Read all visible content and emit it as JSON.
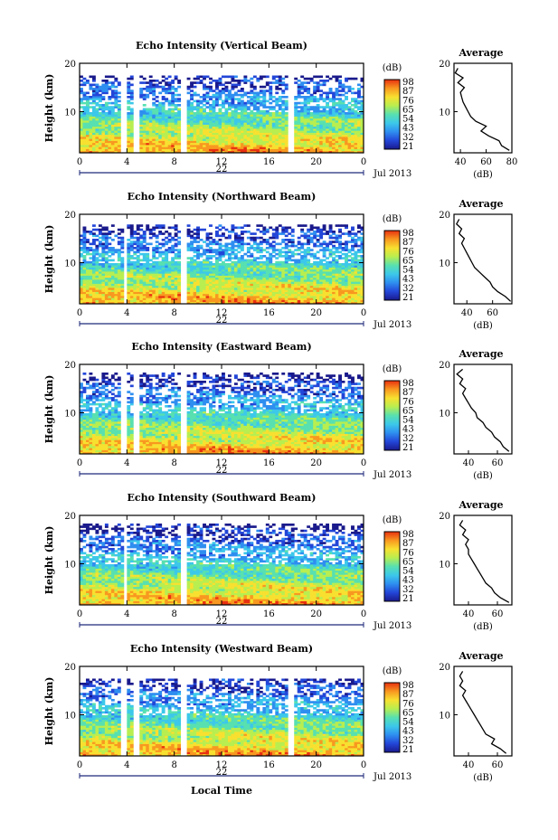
{
  "figure": {
    "xlabel": "Local Time",
    "x_ticks": [
      "0",
      "4",
      "8",
      "12",
      "16",
      "20",
      "0"
    ],
    "date_label": "22",
    "month_label": "Jul 2013",
    "colorbar_unit": "(dB)",
    "colorbar_ticks": [
      "98",
      "87",
      "76",
      "65",
      "54",
      "43",
      "32",
      "21"
    ],
    "avg_title": "Average",
    "avg_xlabel": "(dB)"
  },
  "chart_data": [
    {
      "type": "heatmap",
      "title": "Echo Intensity (Vertical Beam)",
      "ylabel": "Height (km)",
      "xlim": [
        0,
        24
      ],
      "ylim": [
        1.5,
        20
      ],
      "yticks": [
        10,
        20
      ],
      "color_range": [
        21,
        98
      ],
      "colormap": [
        "#1a1a8c",
        "#2346d8",
        "#2f8ef0",
        "#3cc8ea",
        "#58e0b0",
        "#b8ee50",
        "#f8e030",
        "#f89820",
        "#e83010"
      ],
      "gaps_hours": [
        [
          3.5,
          4.0
        ],
        [
          4.6,
          5.1
        ],
        [
          8.6,
          9.1
        ],
        [
          17.7,
          18.0
        ]
      ],
      "upper_extent_km": 17.5,
      "avg_xlim": [
        35,
        80
      ],
      "avg_xticks": [
        40,
        60,
        80
      ],
      "avg_xticklabels": [
        "40",
        "60",
        "80"
      ],
      "avg_profile": {
        "height_km": [
          2,
          3,
          4,
          5,
          6,
          7,
          8,
          9,
          10,
          11,
          12,
          13,
          14,
          15,
          16,
          17,
          18,
          19
        ],
        "db": [
          78,
          72,
          70,
          62,
          56,
          60,
          52,
          48,
          46,
          44,
          42,
          41,
          40,
          43,
          38,
          42,
          36,
          38
        ]
      }
    },
    {
      "type": "heatmap",
      "title": "Echo Intensity (Northward Beam)",
      "ylabel": "Height (km)",
      "xlim": [
        0,
        24
      ],
      "ylim": [
        1.5,
        20
      ],
      "yticks": [
        10,
        20
      ],
      "color_range": [
        21,
        98
      ],
      "colormap": [
        "#1a1a8c",
        "#2346d8",
        "#2f8ef0",
        "#3cc8ea",
        "#58e0b0",
        "#b8ee50",
        "#f8e030",
        "#f89820",
        "#e83010"
      ],
      "gaps_hours": [
        [
          3.6,
          3.9
        ],
        [
          8.6,
          9.0
        ]
      ],
      "upper_extent_km": 18.0,
      "avg_xlim": [
        30,
        75
      ],
      "avg_xticks": [
        40,
        60
      ],
      "avg_xticklabels": [
        "40",
        "60"
      ],
      "avg_profile": {
        "height_km": [
          2,
          3,
          4,
          5,
          6,
          7,
          8,
          9,
          10,
          11,
          12,
          13,
          14,
          15,
          16,
          17,
          18,
          19
        ],
        "db": [
          74,
          70,
          64,
          60,
          58,
          54,
          50,
          46,
          44,
          42,
          40,
          38,
          36,
          38,
          34,
          36,
          32,
          34
        ]
      }
    },
    {
      "type": "heatmap",
      "title": "Echo Intensity (Eastward Beam)",
      "ylabel": "Height (km)",
      "xlim": [
        0,
        24
      ],
      "ylim": [
        1.5,
        20
      ],
      "yticks": [
        10,
        20
      ],
      "color_range": [
        21,
        98
      ],
      "colormap": [
        "#1a1a8c",
        "#2346d8",
        "#2f8ef0",
        "#3cc8ea",
        "#58e0b0",
        "#b8ee50",
        "#f8e030",
        "#f89820",
        "#e83010"
      ],
      "gaps_hours": [
        [
          3.5,
          3.9
        ],
        [
          4.6,
          5.0
        ],
        [
          8.6,
          9.0
        ]
      ],
      "upper_extent_km": 18.5,
      "avg_xlim": [
        30,
        70
      ],
      "avg_xticks": [
        40,
        60
      ],
      "avg_xticklabels": [
        "40",
        "60"
      ],
      "avg_profile": {
        "height_km": [
          2,
          3,
          4,
          5,
          6,
          7,
          8,
          9,
          10,
          11,
          12,
          13,
          14,
          15,
          16,
          17,
          18,
          19
        ],
        "db": [
          68,
          64,
          62,
          58,
          56,
          52,
          50,
          46,
          45,
          42,
          40,
          38,
          36,
          38,
          34,
          36,
          32,
          36
        ]
      }
    },
    {
      "type": "heatmap",
      "title": "Echo Intensity (Southward Beam)",
      "ylabel": "Height (km)",
      "xlim": [
        0,
        24
      ],
      "ylim": [
        1.5,
        20
      ],
      "yticks": [
        10,
        20
      ],
      "color_range": [
        21,
        98
      ],
      "colormap": [
        "#1a1a8c",
        "#2346d8",
        "#2f8ef0",
        "#3cc8ea",
        "#58e0b0",
        "#b8ee50",
        "#f8e030",
        "#f89820",
        "#e83010"
      ],
      "gaps_hours": [
        [
          3.6,
          3.9
        ],
        [
          8.6,
          9.0
        ]
      ],
      "upper_extent_km": 18.5,
      "avg_xlim": [
        30,
        70
      ],
      "avg_xticks": [
        40,
        60
      ],
      "avg_xticklabels": [
        "40",
        "60"
      ],
      "avg_profile": {
        "height_km": [
          2,
          3,
          4,
          5,
          6,
          7,
          8,
          9,
          10,
          11,
          12,
          13,
          14,
          15,
          16,
          17,
          18,
          19
        ],
        "db": [
          68,
          62,
          58,
          56,
          52,
          50,
          48,
          46,
          44,
          42,
          40,
          40,
          38,
          40,
          36,
          38,
          34,
          36
        ]
      }
    },
    {
      "type": "heatmap",
      "title": "Echo Intensity (Westward Beam)",
      "ylabel": "Height (km)",
      "xlim": [
        0,
        24
      ],
      "ylim": [
        1.5,
        20
      ],
      "yticks": [
        10,
        20
      ],
      "color_range": [
        21,
        98
      ],
      "colormap": [
        "#1a1a8c",
        "#2346d8",
        "#2f8ef0",
        "#3cc8ea",
        "#58e0b0",
        "#b8ee50",
        "#f8e030",
        "#f89820",
        "#e83010"
      ],
      "gaps_hours": [
        [
          3.5,
          3.9
        ],
        [
          4.6,
          5.0
        ],
        [
          8.6,
          9.0
        ],
        [
          17.7,
          18.0
        ]
      ],
      "upper_extent_km": 17.5,
      "avg_xlim": [
        30,
        70
      ],
      "avg_xticks": [
        40,
        60
      ],
      "avg_xticklabels": [
        "40",
        "60"
      ],
      "avg_profile": {
        "height_km": [
          2,
          3,
          4,
          5,
          6,
          7,
          8,
          9,
          10,
          11,
          12,
          13,
          14,
          15,
          16,
          17,
          18,
          19
        ],
        "db": [
          66,
          62,
          56,
          58,
          52,
          50,
          48,
          46,
          44,
          42,
          40,
          38,
          36,
          38,
          34,
          36,
          34,
          36
        ]
      }
    }
  ]
}
